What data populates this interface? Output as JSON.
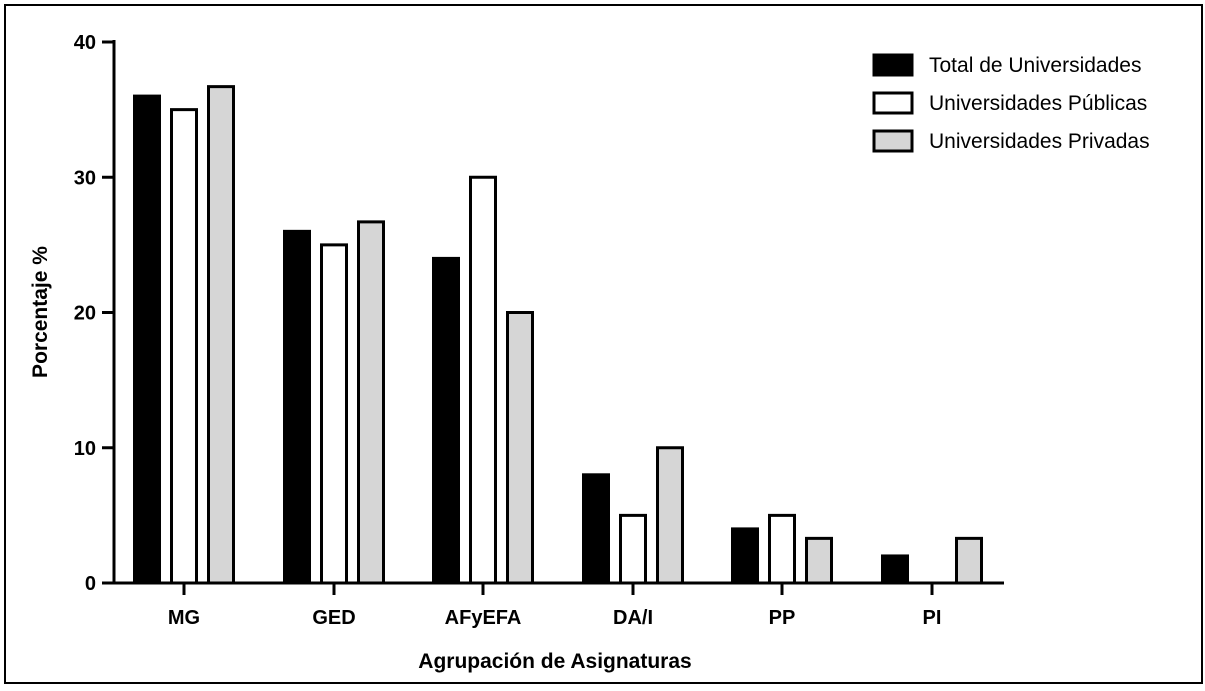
{
  "chart_data": {
    "type": "bar",
    "title": "",
    "xlabel": "Agrupación de Asignaturas",
    "ylabel": "Porcentaje %",
    "ylim": [
      0,
      40
    ],
    "yticks": [
      0,
      10,
      20,
      30,
      40
    ],
    "categories": [
      "MG",
      "GED",
      "AFyEFA",
      "DA/I",
      "PP",
      "PI"
    ],
    "series": [
      {
        "name": "Total de Universidades",
        "color": "#000000",
        "values": [
          36,
          26,
          24,
          8,
          4,
          2
        ]
      },
      {
        "name": "Universidades Públicas",
        "color": "#ffffff",
        "values": [
          35,
          25,
          30,
          5,
          5,
          0
        ]
      },
      {
        "name": "Universidades Privadas",
        "color": "#d6d6d6",
        "values": [
          36.7,
          26.7,
          20,
          10,
          3.3,
          3.3
        ]
      }
    ],
    "legend_position": "top-right",
    "grid": false
  }
}
